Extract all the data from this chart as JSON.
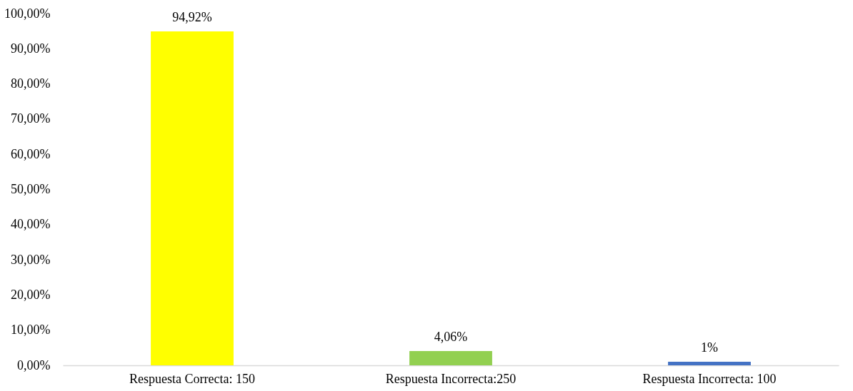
{
  "chart_data": {
    "type": "bar",
    "categories": [
      "Respuesta Correcta: 150",
      "Respuesta Incorrecta:250",
      "Respuesta Incorrecta: 100"
    ],
    "values": [
      94.92,
      4.06,
      1
    ],
    "colors": [
      "#ffff00",
      "#92d050",
      "#4472c4"
    ],
    "value_labels": [
      "94,92%",
      "4,06%",
      "1%"
    ],
    "ylim": [
      0,
      100
    ],
    "yticks": [
      {
        "value": 0,
        "label": "0,00%"
      },
      {
        "value": 10,
        "label": "10,00%"
      },
      {
        "value": 20,
        "label": "20,00%"
      },
      {
        "value": 30,
        "label": "30,00%"
      },
      {
        "value": 40,
        "label": "40,00%"
      },
      {
        "value": 50,
        "label": "50,00%"
      },
      {
        "value": 60,
        "label": "60,00%"
      },
      {
        "value": 70,
        "label": "70,00%"
      },
      {
        "value": 80,
        "label": "80,00%"
      },
      {
        "value": 90,
        "label": "90,00%"
      },
      {
        "value": 100,
        "label": "100,00%"
      }
    ],
    "grid": false
  }
}
